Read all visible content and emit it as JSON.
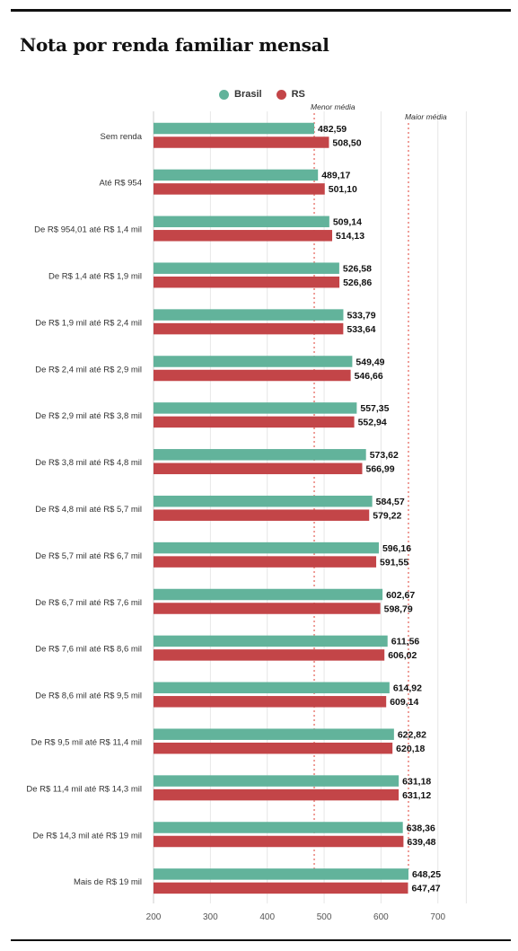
{
  "title": "Nota por renda familiar mensal",
  "colors": {
    "brasil": "#62b39b",
    "rs": "#c34548",
    "reference": "#e8756d",
    "grid": "#e6e6e6"
  },
  "chart_data": {
    "type": "bar",
    "orientation": "horizontal",
    "title": "Nota por renda familiar mensal",
    "xlabel": "",
    "ylabel": "",
    "xlim": [
      200,
      750
    ],
    "xticks": [
      200,
      300,
      400,
      500,
      600,
      700
    ],
    "grid": true,
    "legend": "top-center",
    "categories": [
      "Sem renda",
      "Até R$ 954",
      "De R$ 954,01 até R$ 1,4 mil",
      "De R$ 1,4 até R$ 1,9 mil",
      "De R$ 1,9 mil até R$ 2,4 mil",
      "De R$ 2,4 mil até R$ 2,9 mil",
      "De R$ 2,9 mil até R$ 3,8 mil",
      "De R$ 3,8 mil até R$ 4,8 mil",
      "De R$ 4,8 mil até R$ 5,7 mil",
      "De R$ 5,7 mil até R$ 6,7 mil",
      "De R$ 6,7 mil até R$ 7,6 mil",
      "De R$ 7,6 mil até R$ 8,6 mil",
      "De R$ 8,6 mil até R$ 9,5 mil",
      "De R$ 9,5 mil até R$ 11,4 mil",
      "De R$ 11,4 mil até R$ 14,3 mil",
      "De R$ 14,3 mil até R$ 19 mil",
      "Mais de R$ 19 mil"
    ],
    "series": [
      {
        "name": "Brasil",
        "values": [
          482.59,
          489.17,
          509.14,
          526.58,
          533.79,
          549.49,
          557.35,
          573.62,
          584.57,
          596.16,
          602.67,
          611.56,
          614.92,
          622.82,
          631.18,
          638.36,
          648.25
        ],
        "labels": [
          "482,59",
          "489,17",
          "509,14",
          "526,58",
          "533,79",
          "549,49",
          "557,35",
          "573,62",
          "584,57",
          "596,16",
          "602,67",
          "611,56",
          "614,92",
          "622,82",
          "631,18",
          "638,36",
          "648,25"
        ]
      },
      {
        "name": "RS",
        "values": [
          508.5,
          501.1,
          514.13,
          526.86,
          533.64,
          546.66,
          552.94,
          566.99,
          579.22,
          591.55,
          598.79,
          606.02,
          609.14,
          620.18,
          631.12,
          639.48,
          647.47
        ],
        "labels": [
          "508,50",
          "501,10",
          "514,13",
          "526,86",
          "533,64",
          "546,66",
          "552,94",
          "566,99",
          "579,22",
          "591,55",
          "598,79",
          "606,02",
          "609,14",
          "620,18",
          "631,12",
          "639,48",
          "647,47"
        ]
      }
    ],
    "reference_lines": [
      {
        "label": "Menor média",
        "value": 482.59
      },
      {
        "label": "Maior média",
        "value": 648.25
      }
    ]
  }
}
